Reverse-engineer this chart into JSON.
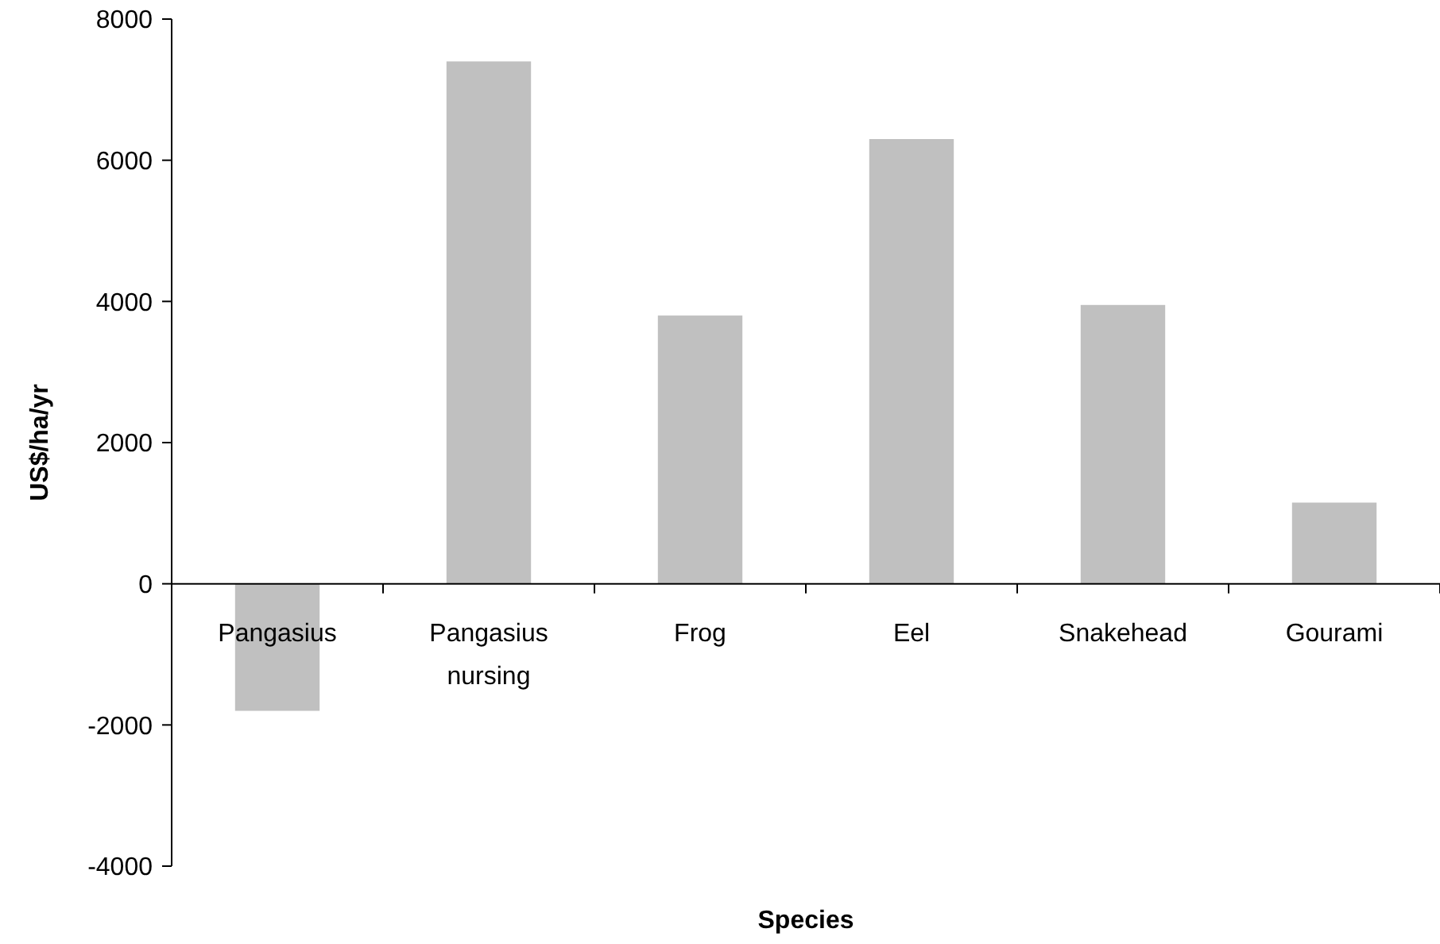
{
  "chart_data": {
    "type": "bar",
    "xlabel": "Species",
    "ylabel": "US$/ha/yr",
    "categories": [
      "Pangasius",
      "Pangasius nursing",
      "Frog",
      "Eel",
      "Snakehead",
      "Gourami"
    ],
    "values": [
      -1800,
      7400,
      3800,
      6300,
      3950,
      1150
    ],
    "color": "#c0c0c0",
    "ylim": [
      -4000,
      8000
    ],
    "yticks": [
      -4000,
      -2000,
      0,
      2000,
      4000,
      6000,
      8000
    ],
    "grid": false
  }
}
